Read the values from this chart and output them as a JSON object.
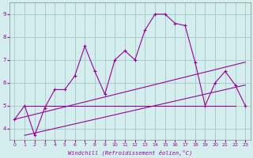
{
  "xlabel": "Windchill (Refroidissement éolien,°C)",
  "background_color": "#d4eeee",
  "grid_color": "#aacccc",
  "line_color": "#990099",
  "xlim": [
    -0.5,
    23.5
  ],
  "ylim": [
    3.5,
    9.5
  ],
  "xticks": [
    0,
    1,
    2,
    3,
    4,
    5,
    6,
    7,
    8,
    9,
    10,
    11,
    12,
    13,
    14,
    15,
    16,
    17,
    18,
    19,
    20,
    21,
    22,
    23
  ],
  "yticks": [
    4,
    5,
    6,
    7,
    8,
    9
  ],
  "series1_x": [
    0,
    1,
    2,
    3,
    4,
    5,
    6,
    7,
    8,
    9,
    10,
    11,
    12,
    13,
    14,
    15,
    16,
    17,
    18,
    19,
    20,
    21,
    22,
    23
  ],
  "series1_y": [
    4.4,
    5.0,
    3.7,
    4.9,
    5.7,
    5.7,
    6.3,
    7.6,
    6.5,
    5.5,
    7.0,
    7.4,
    7.0,
    8.3,
    9.0,
    9.0,
    8.6,
    8.5,
    6.9,
    5.0,
    6.0,
    6.5,
    5.9,
    5.0
  ],
  "line2_x": [
    0,
    23
  ],
  "line2_y": [
    4.4,
    6.9
  ],
  "line3_x": [
    1,
    23
  ],
  "line3_y": [
    3.7,
    5.9
  ],
  "line4_x": [
    1,
    22
  ],
  "line4_y": [
    5.0,
    5.0
  ]
}
